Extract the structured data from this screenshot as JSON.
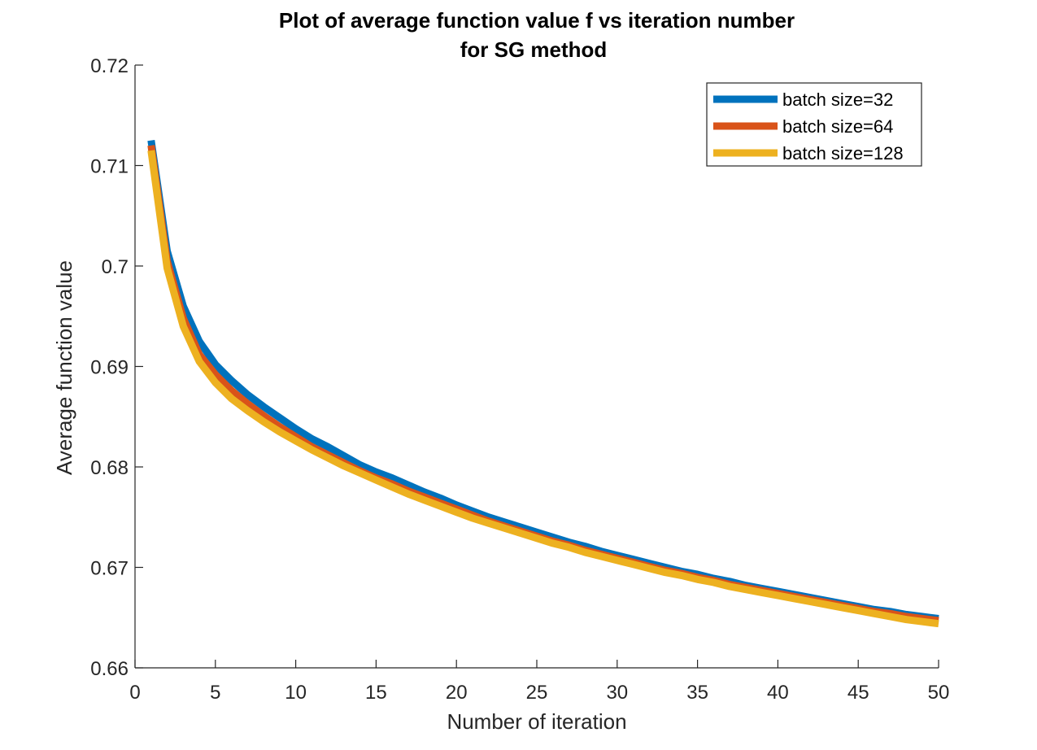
{
  "chart_data": {
    "type": "line",
    "title": [
      "Plot of average function value f vs iteration number",
      "for SG method"
    ],
    "xlabel": "Number of iteration",
    "ylabel": "Average function value",
    "xlim": [
      0,
      50
    ],
    "ylim": [
      0.66,
      0.72
    ],
    "xticks": [
      "0",
      "5",
      "10",
      "15",
      "20",
      "25",
      "30",
      "35",
      "40",
      "45",
      "50"
    ],
    "yticks": [
      "0.66",
      "0.67",
      "0.68",
      "0.69",
      "0.7",
      "0.71",
      "0.72"
    ],
    "grid": false,
    "legend_position": "top-right",
    "x": [
      1,
      2,
      3,
      4,
      5,
      6,
      7,
      8,
      9,
      10,
      11,
      12,
      13,
      14,
      15,
      16,
      17,
      18,
      19,
      20,
      21,
      22,
      23,
      24,
      25,
      26,
      27,
      28,
      29,
      30,
      31,
      32,
      33,
      34,
      35,
      36,
      37,
      38,
      39,
      40,
      41,
      42,
      43,
      44,
      45,
      46,
      47,
      48,
      49,
      50
    ],
    "series": [
      {
        "name": "batch size=32",
        "color": "#0072BD",
        "values": [
          0.7125,
          0.7015,
          0.696,
          0.6925,
          0.6902,
          0.6886,
          0.6872,
          0.686,
          0.6849,
          0.6838,
          0.6828,
          0.682,
          0.6811,
          0.6802,
          0.6795,
          0.6789,
          0.6782,
          0.6775,
          0.6769,
          0.6762,
          0.6756,
          0.675,
          0.6745,
          0.674,
          0.6735,
          0.673,
          0.6725,
          0.6721,
          0.6716,
          0.6712,
          0.6708,
          0.6704,
          0.67,
          0.6696,
          0.6693,
          0.6689,
          0.6686,
          0.6682,
          0.6679,
          0.6676,
          0.6673,
          0.667,
          0.6667,
          0.6664,
          0.6661,
          0.6658,
          0.6656,
          0.6653,
          0.6651,
          0.6649
        ]
      },
      {
        "name": "batch size=64",
        "color": "#D95319",
        "values": [
          0.712,
          0.7005,
          0.6948,
          0.6912,
          0.6892,
          0.6876,
          0.6863,
          0.6851,
          0.684,
          0.683,
          0.682,
          0.6812,
          0.6804,
          0.6796,
          0.6789,
          0.6783,
          0.6776,
          0.677,
          0.6764,
          0.6758,
          0.6752,
          0.6746,
          0.6741,
          0.6736,
          0.6731,
          0.6726,
          0.6722,
          0.6717,
          0.6713,
          0.6709,
          0.6705,
          0.6701,
          0.6697,
          0.6694,
          0.669,
          0.6687,
          0.6683,
          0.668,
          0.6677,
          0.6674,
          0.6671,
          0.6668,
          0.6665,
          0.6662,
          0.6659,
          0.6656,
          0.6654,
          0.6651,
          0.6649,
          0.6647
        ]
      },
      {
        "name": "batch size=128",
        "color": "#EDB120",
        "values": [
          0.7115,
          0.6998,
          0.694,
          0.6905,
          0.6884,
          0.6868,
          0.6856,
          0.6845,
          0.6835,
          0.6826,
          0.6817,
          0.6809,
          0.6801,
          0.6794,
          0.6787,
          0.678,
          0.6773,
          0.6767,
          0.6761,
          0.6755,
          0.6749,
          0.6744,
          0.6739,
          0.6734,
          0.6729,
          0.6724,
          0.672,
          0.6715,
          0.6711,
          0.6707,
          0.6703,
          0.6699,
          0.6695,
          0.6692,
          0.6688,
          0.6685,
          0.6681,
          0.6678,
          0.6675,
          0.6672,
          0.6669,
          0.6666,
          0.6663,
          0.666,
          0.6657,
          0.6654,
          0.6651,
          0.6648,
          0.6646,
          0.6644
        ]
      }
    ]
  }
}
